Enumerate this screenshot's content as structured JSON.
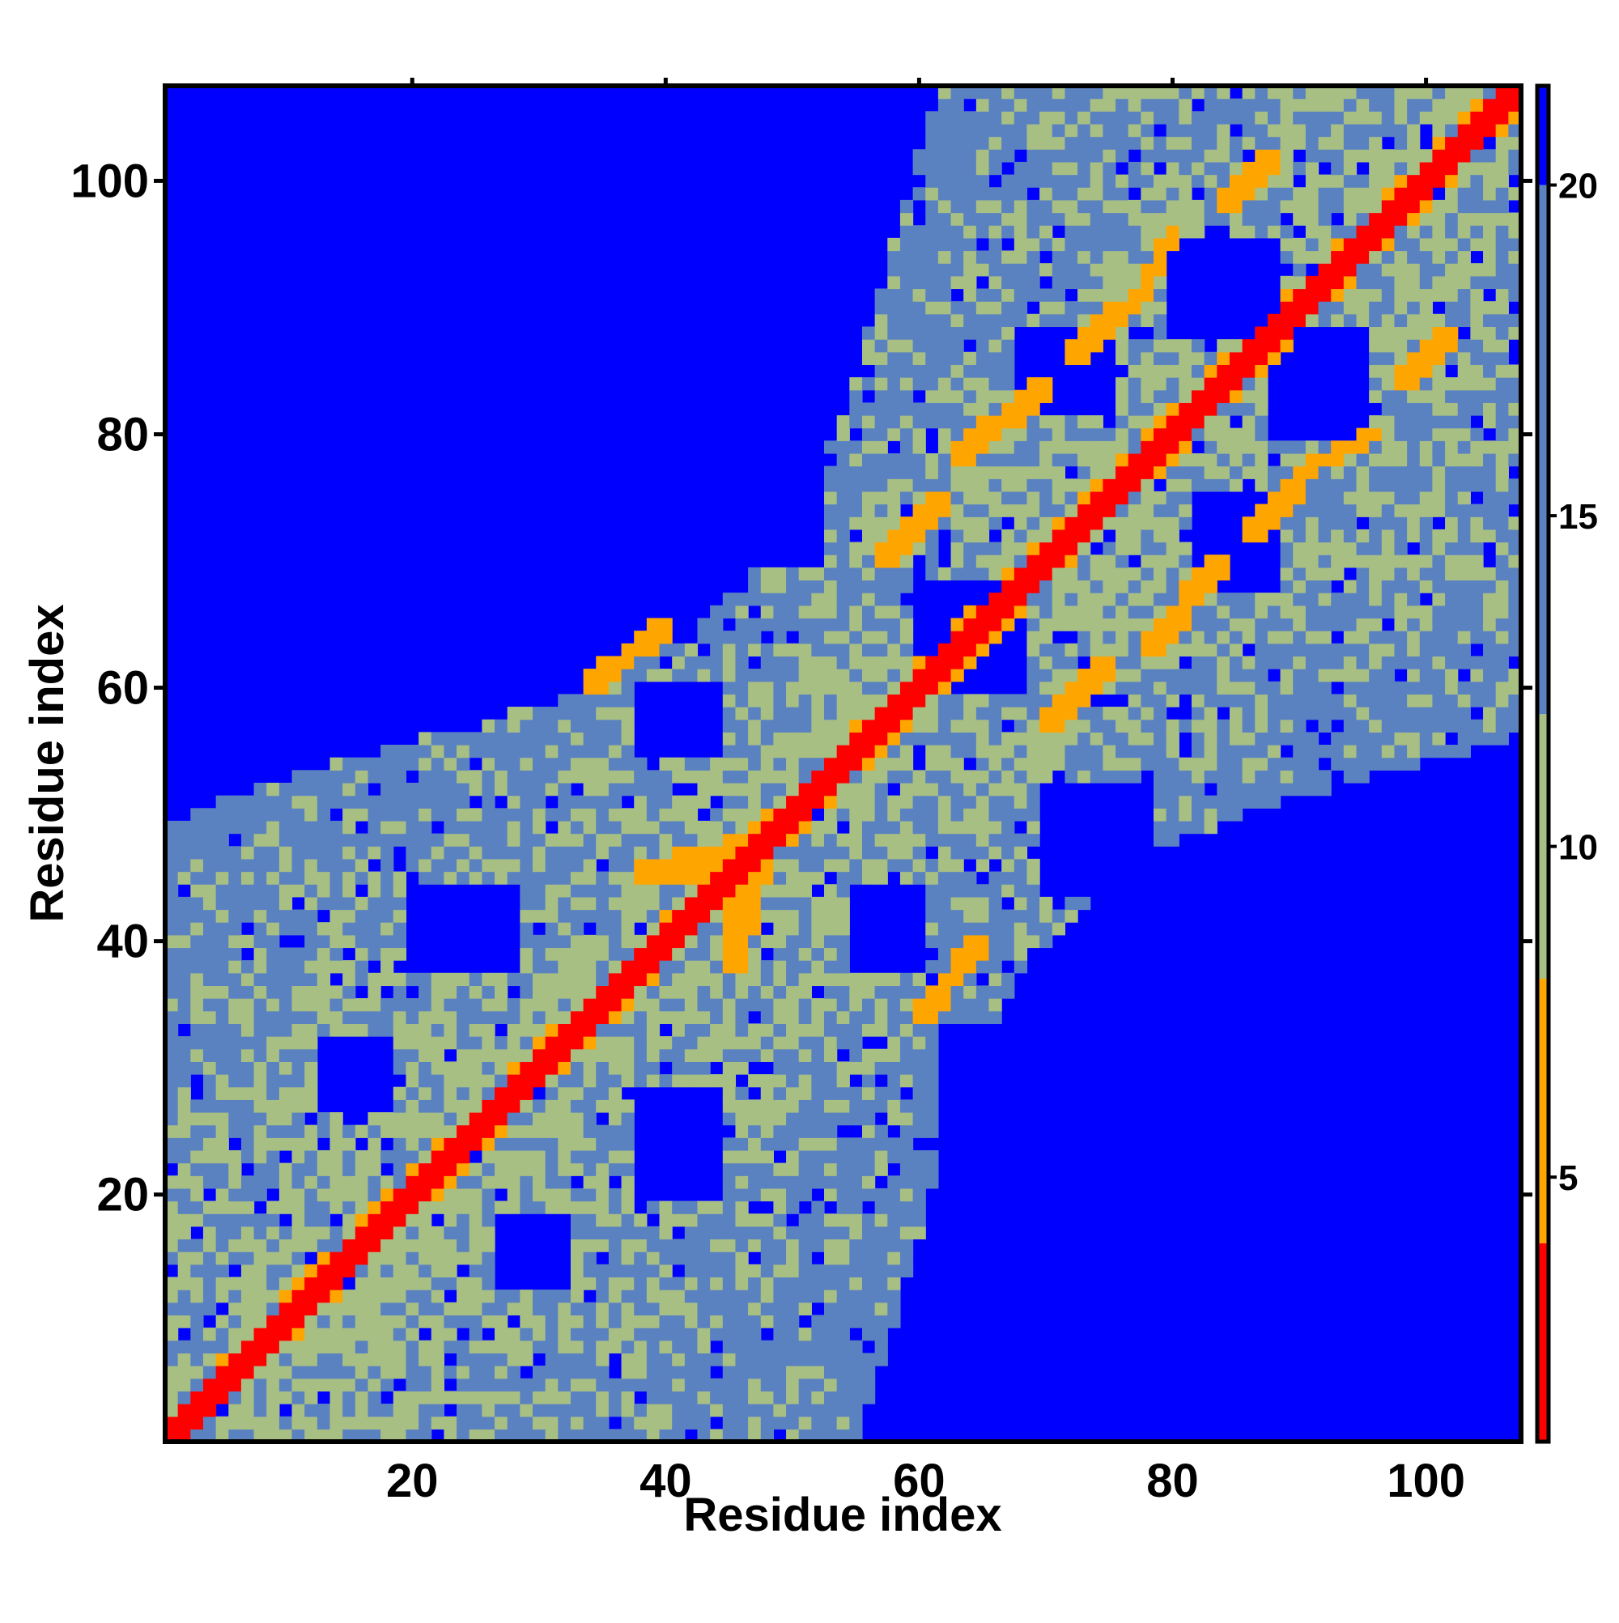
{
  "chart_data": {
    "type": "heatmap",
    "title": "",
    "xlabel": "Residue index",
    "ylabel": "Residue index",
    "n_residues": 107,
    "xlim": [
      0.5,
      107.5
    ],
    "ylim": [
      0.5,
      107.5
    ],
    "x_ticks": [
      20,
      40,
      60,
      80,
      100
    ],
    "y_ticks": [
      20,
      40,
      60,
      80,
      100
    ],
    "x_tick_labels": [
      "20",
      "40",
      "60",
      "80",
      "100"
    ],
    "y_tick_labels": [
      "20",
      "40",
      "60",
      "80",
      "100"
    ],
    "colorbar": {
      "ticks": [
        5,
        10,
        15,
        20
      ],
      "tick_labels": [
        "5",
        "10",
        "15",
        "20"
      ],
      "range": [
        1,
        21.5
      ],
      "bands": [
        {
          "from": 1,
          "to": 4,
          "color": "#ff0000"
        },
        {
          "from": 4,
          "to": 8,
          "color": "#ffa500"
        },
        {
          "from": 8,
          "to": 12,
          "color": "#a8bf84"
        },
        {
          "from": 12,
          "to": 20,
          "color": "#5b82c0"
        },
        {
          "from": 20,
          "to": 21.5,
          "color": "#0000ff"
        }
      ]
    },
    "colors": {
      "red": "#ff0000",
      "orange": "#ffa500",
      "sage": "#a8bf84",
      "steel": "#5b82c0",
      "blue": "#0000ff"
    },
    "features": {
      "diagonal_band": "red",
      "secondary_structure_contacts": "orange",
      "background": "blue"
    }
  }
}
